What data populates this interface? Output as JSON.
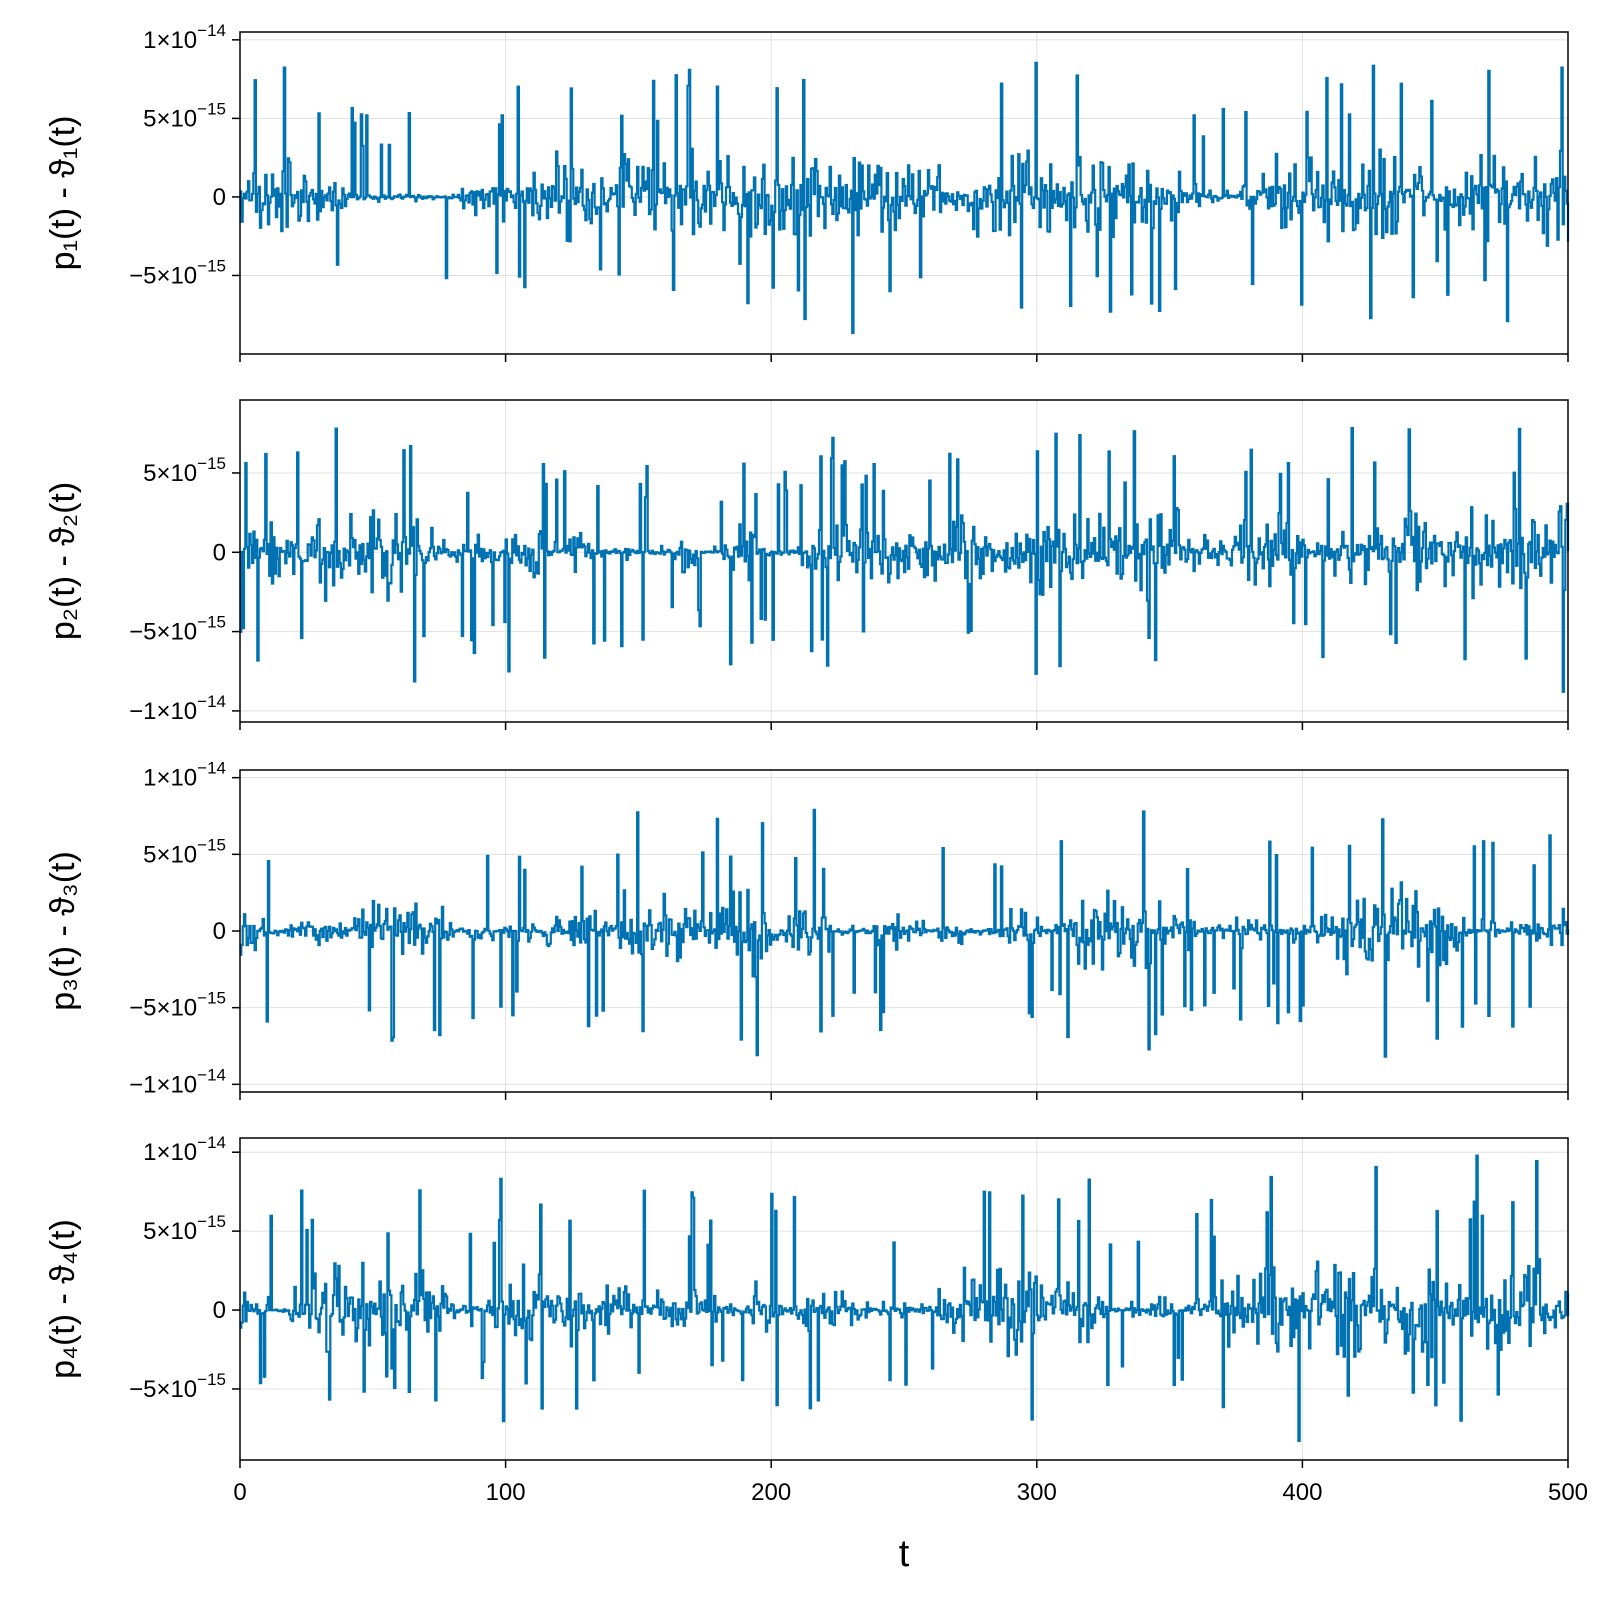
{
  "chart_data": [
    {
      "type": "line",
      "ylabel": "p₁(t) - ϑ₁(t)",
      "xlim": [
        0,
        500
      ],
      "ylim": [
        -1e-14,
        1.05e-14
      ],
      "yticks": [
        {
          "value": 1e-14,
          "mant": "1×10",
          "exp": "−14"
        },
        {
          "value": 5e-15,
          "mant": "5×10",
          "exp": "−15"
        },
        {
          "value": 0,
          "mant": "0",
          "exp": ""
        },
        {
          "value": -5e-15,
          "mant": "−5×10",
          "exp": "−15"
        }
      ],
      "peak_max": 9.3e-15,
      "peak_min": -8.8e-15,
      "seed": 11,
      "series": [
        {
          "x_start": 0,
          "x_end": 500,
          "samples": 1000
        }
      ]
    },
    {
      "type": "line",
      "ylabel": "p₂(t) - ϑ₂(t)",
      "xlim": [
        0,
        500
      ],
      "ylim": [
        -1.07e-14,
        9.6e-15
      ],
      "yticks": [
        {
          "value": 5e-15,
          "mant": "5×10",
          "exp": "−15"
        },
        {
          "value": 0,
          "mant": "0",
          "exp": ""
        },
        {
          "value": -5e-15,
          "mant": "−5×10",
          "exp": "−15"
        },
        {
          "value": -1e-14,
          "mant": "−1×10",
          "exp": "−14"
        }
      ],
      "peak_max": 8.8e-15,
      "peak_min": -9.6e-15,
      "seed": 23,
      "series": [
        {
          "x_start": 0,
          "x_end": 500,
          "samples": 1000
        }
      ]
    },
    {
      "type": "line",
      "ylabel": "p₃(t) - ϑ₃(t)",
      "xlim": [
        0,
        500
      ],
      "ylim": [
        -1.05e-14,
        1.05e-14
      ],
      "yticks": [
        {
          "value": 1e-14,
          "mant": "1×10",
          "exp": "−14"
        },
        {
          "value": 5e-15,
          "mant": "5×10",
          "exp": "−15"
        },
        {
          "value": 0,
          "mant": "0",
          "exp": ""
        },
        {
          "value": -5e-15,
          "mant": "−5×10",
          "exp": "−15"
        },
        {
          "value": -1e-14,
          "mant": "−1×10",
          "exp": "−14"
        }
      ],
      "peak_max": 9.3e-15,
      "peak_min": -9.3e-15,
      "seed": 37,
      "series": [
        {
          "x_start": 0,
          "x_end": 500,
          "samples": 1000
        }
      ]
    },
    {
      "type": "line",
      "ylabel": "p₄(t) - ϑ₄(t)",
      "xlabel": "t",
      "xlim": [
        0,
        500
      ],
      "ylim": [
        -9.5e-15,
        1.09e-14
      ],
      "yticks": [
        {
          "value": 1e-14,
          "mant": "1×10",
          "exp": "−14"
        },
        {
          "value": 5e-15,
          "mant": "5×10",
          "exp": "−15"
        },
        {
          "value": 0,
          "mant": "0",
          "exp": ""
        },
        {
          "value": -5e-15,
          "mant": "−5×10",
          "exp": "−15"
        }
      ],
      "xticks": [
        0,
        100,
        200,
        300,
        400,
        500
      ],
      "peak_max": 1e-14,
      "peak_min": -8.5e-15,
      "seed": 53,
      "series": [
        {
          "x_start": 0,
          "x_end": 500,
          "samples": 1000
        }
      ]
    }
  ],
  "colors": {
    "series": "#0072b2"
  }
}
